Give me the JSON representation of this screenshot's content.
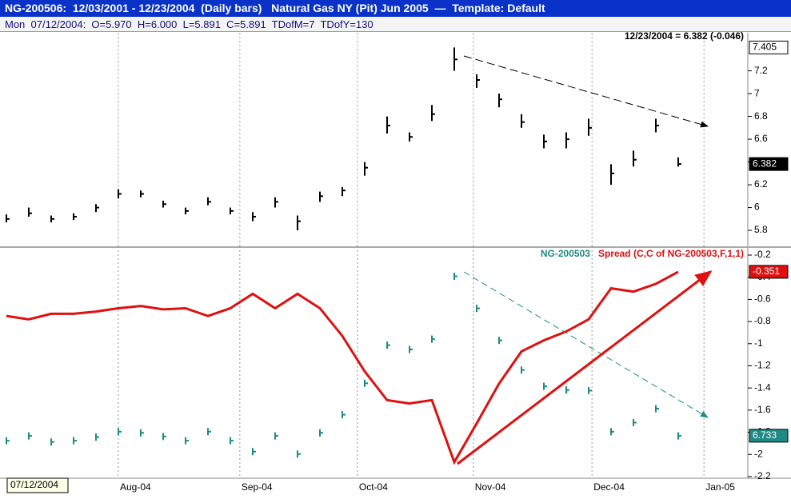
{
  "title_bar": "NG-200506:  12/03/2001 - 12/23/2004  (Daily bars)   Natural Gas NY (Pit) Jun 2005  —  Template: Default",
  "info_bar": "Mon  07/12/2004:  O=5.970  H=6.000  L=5.891  C=5.891  TDofM=7  TDofY=130",
  "date_box": "07/12/2004",
  "chart_data": [
    {
      "type": "ohlc",
      "header": "12/23/2004 = 6.382 (-0.046)",
      "x": [
        0,
        4,
        8,
        12,
        16,
        20,
        24,
        28,
        32,
        36,
        40,
        44,
        48,
        52,
        56,
        60,
        64,
        68,
        72,
        76,
        80,
        84,
        88,
        92,
        96,
        100,
        104,
        108,
        112,
        116,
        120
      ],
      "xlim": [
        -1.14,
        132.43
      ],
      "xticks": [
        {
          "value": 20,
          "label": "Aug-04"
        },
        {
          "value": 41.7,
          "label": "Sep-04"
        },
        {
          "value": 62.7,
          "label": "Oct-04"
        },
        {
          "value": 83.4,
          "label": "Nov-04"
        },
        {
          "value": 104.6,
          "label": "Dec-04"
        },
        {
          "value": 124.6,
          "label": "Jan-05"
        }
      ],
      "ylim": [
        5.66,
        7.52
      ],
      "yticks": [
        5.8,
        6,
        6.2,
        6.4,
        6.6,
        6.8,
        7,
        7.2
      ],
      "grid": true,
      "series": [
        {
          "type": "ohlc",
          "color": "#000000",
          "high": [
            5.94,
            6.0,
            5.93,
            5.95,
            6.03,
            6.16,
            6.15,
            6.06,
            6.0,
            6.09,
            6.0,
            5.96,
            6.09,
            5.93,
            6.14,
            6.18,
            6.4,
            6.8,
            6.66,
            6.9,
            7.405,
            7.17,
            7.0,
            6.82,
            6.64,
            6.66,
            6.78,
            6.38,
            6.5,
            6.78,
            6.44
          ],
          "low": [
            5.87,
            5.92,
            5.87,
            5.89,
            5.96,
            6.08,
            6.09,
            6.0,
            5.94,
            6.02,
            5.94,
            5.88,
            6.0,
            5.8,
            6.05,
            6.1,
            6.28,
            6.65,
            6.58,
            6.76,
            7.2,
            7.05,
            6.88,
            6.7,
            6.52,
            6.52,
            6.63,
            6.2,
            6.36,
            6.66,
            6.36
          ],
          "close": [
            5.9,
            5.95,
            5.9,
            5.92,
            6.0,
            6.12,
            6.12,
            6.03,
            5.97,
            6.05,
            5.97,
            5.92,
            6.05,
            5.88,
            6.1,
            6.15,
            6.35,
            6.72,
            6.62,
            6.82,
            7.3,
            7.12,
            6.95,
            6.75,
            6.58,
            6.6,
            6.7,
            6.3,
            6.42,
            6.72,
            6.382
          ]
        }
      ]
    },
    {
      "type": "combo",
      "x": [
        0,
        4,
        8,
        12,
        16,
        20,
        24,
        28,
        32,
        36,
        40,
        44,
        48,
        52,
        56,
        60,
        64,
        68,
        72,
        76,
        80,
        84,
        88,
        92,
        96,
        100,
        104,
        108,
        112,
        116,
        120
      ],
      "xlim": [
        -1.14,
        132.43
      ],
      "xticks": [
        {
          "value": 20,
          "label": "Aug-04"
        },
        {
          "value": 41.7,
          "label": "Sep-04"
        },
        {
          "value": 62.7,
          "label": "Oct-04"
        },
        {
          "value": 83.4,
          "label": "Nov-04"
        },
        {
          "value": 104.6,
          "label": "Dec-04"
        },
        {
          "value": 124.6,
          "label": "Jan-05"
        }
      ],
      "ylim": [
        -2.215,
        -0.135
      ],
      "yticks": [
        -0.2,
        -0.4,
        -0.6,
        -0.8,
        -1,
        -1.2,
        -1.4,
        -1.6,
        -1.8,
        -2,
        -2.2
      ],
      "y2lim": [
        6.03,
        9.84
      ],
      "grid": true,
      "series": [
        {
          "type": "ohlc",
          "name": "NG-200503",
          "color": "#1f8a86",
          "axis": "y2",
          "high": [
            6.71,
            6.79,
            6.69,
            6.71,
            6.77,
            6.86,
            6.84,
            6.78,
            6.71,
            6.86,
            6.71,
            6.53,
            6.79,
            6.49,
            6.84,
            7.14,
            7.66,
            8.29,
            8.22,
            8.39,
            9.43,
            8.9,
            8.37,
            7.88,
            7.61,
            7.55,
            7.54,
            6.86,
            7.01,
            7.24,
            6.79
          ],
          "low": [
            6.59,
            6.67,
            6.57,
            6.59,
            6.65,
            6.74,
            6.72,
            6.66,
            6.59,
            6.74,
            6.59,
            6.41,
            6.67,
            6.37,
            6.72,
            7.02,
            7.54,
            8.17,
            8.1,
            8.27,
            9.31,
            8.78,
            8.25,
            7.76,
            7.49,
            7.43,
            7.42,
            6.74,
            6.89,
            7.12,
            6.67
          ],
          "close": [
            6.65,
            6.73,
            6.63,
            6.65,
            6.71,
            6.8,
            6.78,
            6.72,
            6.65,
            6.8,
            6.65,
            6.47,
            6.73,
            6.43,
            6.78,
            7.08,
            7.6,
            8.23,
            8.16,
            8.33,
            9.37,
            8.84,
            8.31,
            7.82,
            7.55,
            7.49,
            7.48,
            6.8,
            6.95,
            7.18,
            6.733
          ]
        },
        {
          "type": "line",
          "name": "Spread (C,C of NG-200503,F,1,1)",
          "color": "#e01010",
          "values": [
            -0.75,
            -0.78,
            -0.73,
            -0.73,
            -0.71,
            -0.68,
            -0.66,
            -0.69,
            -0.68,
            -0.75,
            -0.68,
            -0.55,
            -0.68,
            -0.55,
            -0.68,
            -0.93,
            -1.25,
            -1.51,
            -1.54,
            -1.51,
            -2.07,
            -1.72,
            -1.36,
            -1.07,
            -0.97,
            -0.89,
            -0.78,
            -0.5,
            -0.53,
            -0.46,
            -0.351
          ]
        }
      ]
    }
  ]
}
